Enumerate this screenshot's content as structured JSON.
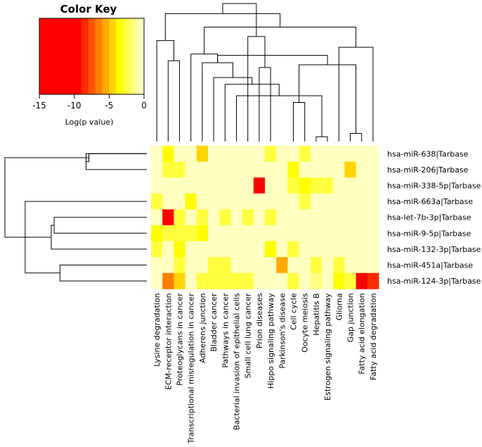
{
  "chart_data": {
    "type": "heatmap",
    "title": "",
    "xlabel": "",
    "ylabel": "",
    "color_key": {
      "title": "Color Key",
      "xlabel": "Log(p value)",
      "range": [
        -15,
        0
      ],
      "ticks": [
        -15,
        -10,
        -5,
        0
      ],
      "tick_labels": [
        "-15",
        "-10",
        "-5",
        "0"
      ],
      "colors": [
        "#FF0000",
        "#FF0000",
        "#FF0000",
        "#FF0000",
        "#FF0000",
        "#FF0000",
        "#FF2A00",
        "#FF5500",
        "#FF7F00",
        "#FFAA00",
        "#FFD400",
        "#FFFF00",
        "#FFFF40",
        "#FFFF80",
        "#FFFFBF"
      ]
    },
    "columns": [
      "Lysine degradation",
      "ECM-receptor interaction",
      "Proteoglycans in cancer",
      "Transcriptional misregulation in cancer",
      "Adherens junction",
      "Bladder cancer",
      "Pathways in cancer",
      "Bacterial invasion of epithelial cells",
      "Small cell lung cancer",
      "Prion diseases",
      "Hippo signaling pathway",
      "Parkinson's disease",
      "Cell cycle",
      "Oocyte meiosis",
      "Hepatitis B",
      "Estrogen signaling pathway",
      "Glioma",
      "Gap junction",
      "Fatty acid elongation",
      "Fatty acid degradation"
    ],
    "rows": [
      "hsa-miR-638|Tarbase",
      "hsa-miR-206|Tarbase",
      "hsa-miR-338-5p|Tarbase",
      "hsa-miR-663a|Tarbase",
      "hsa-let-7b-3p|Tarbase",
      "hsa-miR-9-5p|Tarbase",
      "hsa-miR-132-3p|Tarbase",
      "hsa-miR-451a|Tarbase",
      "hsa-miR-124-3p|Tarbase"
    ],
    "values": [
      [
        0,
        -4,
        0,
        0,
        -5,
        0,
        0,
        0,
        0,
        0,
        -3,
        0,
        0,
        -3,
        0,
        0,
        0,
        0,
        0,
        0
      ],
      [
        0,
        -3,
        -3,
        0,
        0,
        0,
        0,
        0,
        0,
        0,
        0,
        0,
        -4,
        0,
        0,
        0,
        0,
        -5,
        0,
        0
      ],
      [
        0,
        0,
        0,
        0,
        0,
        0,
        0,
        0,
        0,
        -14,
        0,
        0,
        -3,
        -4,
        -3,
        -3,
        0,
        0,
        0,
        0
      ],
      [
        -3,
        0,
        0,
        -4,
        0,
        0,
        0,
        0,
        0,
        0,
        0,
        0,
        0,
        -3,
        0,
        0,
        0,
        0,
        0,
        0
      ],
      [
        0,
        -13,
        -3,
        0,
        -3,
        0,
        -3,
        0,
        -3,
        0,
        -3,
        0,
        0,
        0,
        0,
        0,
        0,
        0,
        0,
        0
      ],
      [
        -4,
        -3,
        -3,
        -3,
        -4,
        0,
        0,
        0,
        0,
        0,
        0,
        0,
        0,
        0,
        0,
        0,
        0,
        0,
        0,
        0
      ],
      [
        -3,
        0,
        -4,
        0,
        0,
        0,
        0,
        0,
        0,
        0,
        -4,
        0,
        -3,
        0,
        0,
        0,
        0,
        0,
        0,
        0
      ],
      [
        0,
        0,
        -3,
        0,
        0,
        -3,
        -3,
        0,
        0,
        0,
        0,
        -6,
        0,
        0,
        -3,
        0,
        -3,
        0,
        0,
        0
      ],
      [
        0,
        -7,
        -5,
        0,
        -3,
        -3,
        -3,
        -3,
        -3,
        0,
        0,
        0,
        -3,
        0,
        -2,
        0,
        -4,
        -3,
        -13,
        -9
      ]
    ],
    "column_dendrogram": [
      {
        "a": 15,
        "b": 16,
        "h": 0.7
      },
      {
        "a": 18,
        "b": 19,
        "h": 1.2
      },
      {
        "a": 13,
        "b": 14,
        "h": 5.8
      },
      {
        "a": 8,
        "b": 21,
        "h": 6.8
      },
      {
        "a": 7,
        "b": 24,
        "h": 8.5
      },
      {
        "a": 6,
        "b": 25,
        "h": 9.5
      },
      {
        "a": 5,
        "b": 26,
        "h": 11.7
      },
      {
        "a": 10,
        "b": 11,
        "h": 11.0
      },
      {
        "a": 2,
        "b": 3,
        "h": 12.0
      },
      {
        "a": 22,
        "b": 23,
        "h": 11.4
      },
      {
        "a": 27,
        "b": 30,
        "h": 12.8
      },
      {
        "a": 17,
        "b": 20,
        "h": 14.0
      },
      {
        "a": 4,
        "b": 27,
        "h": 13.0
      },
      {
        "a": 1,
        "b": 29,
        "h": 15.0
      },
      {
        "a": 9,
        "b": 28,
        "h": 15.6
      },
      {
        "a": 32,
        "b": 33,
        "h": 17.0
      },
      {
        "a": 34,
        "b": 36,
        "h": 19.0
      },
      {
        "a": 35,
        "b": 37,
        "h": 20.5
      }
    ],
    "row_dendrogram": [
      {
        "a": 1,
        "b": 2,
        "h": 2.1
      },
      {
        "a": 1,
        "b": 10,
        "h": 2.0
      },
      {
        "a": 8,
        "b": 9,
        "h": 3.0
      },
      {
        "a": 5,
        "b": 6,
        "h": 3.2
      },
      {
        "a": 7,
        "b": 13,
        "h": 3.3
      },
      {
        "a": 12,
        "b": 4,
        "h": 4.2
      },
      {
        "a": 11,
        "b": 14,
        "h": 4.9
      }
    ]
  }
}
